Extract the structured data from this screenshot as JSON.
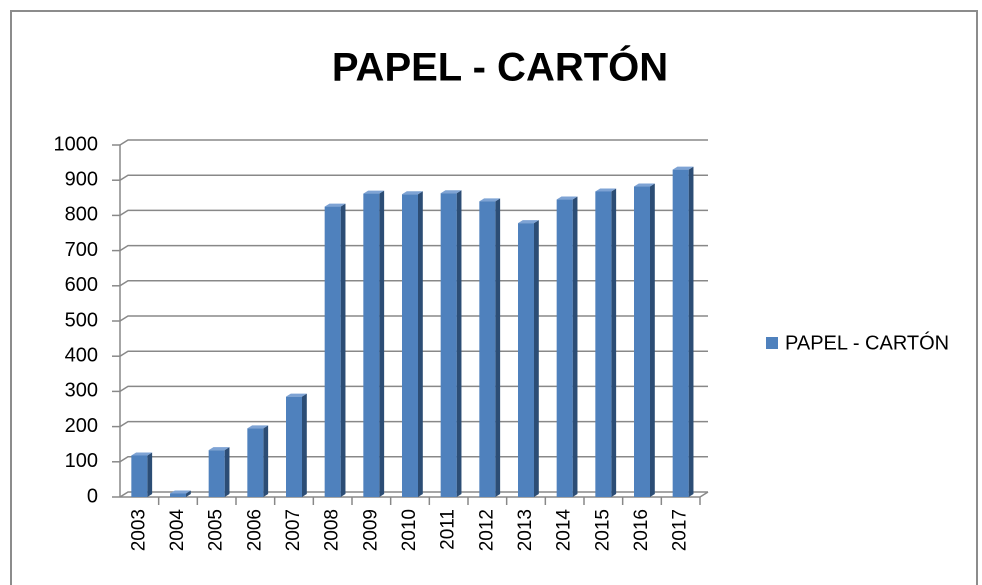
{
  "chart_data": {
    "type": "bar",
    "title": "PAPEL - CARTÓN",
    "categories": [
      "2003",
      "2004",
      "2005",
      "2006",
      "2007",
      "2008",
      "2009",
      "2010",
      "2011",
      "2012",
      "2013",
      "2014",
      "2015",
      "2016",
      "2017"
    ],
    "series": [
      {
        "name": "PAPEL - CARTÓN",
        "color": "#4f81bd",
        "values": [
          118,
          10,
          133,
          195,
          285,
          825,
          862,
          860,
          863,
          840,
          778,
          845,
          868,
          882,
          930
        ]
      }
    ],
    "ylim": [
      0,
      1000
    ],
    "yticks": [
      0,
      100,
      200,
      300,
      400,
      500,
      600,
      700,
      800,
      900,
      1000
    ],
    "grid": true,
    "legend": "right"
  }
}
